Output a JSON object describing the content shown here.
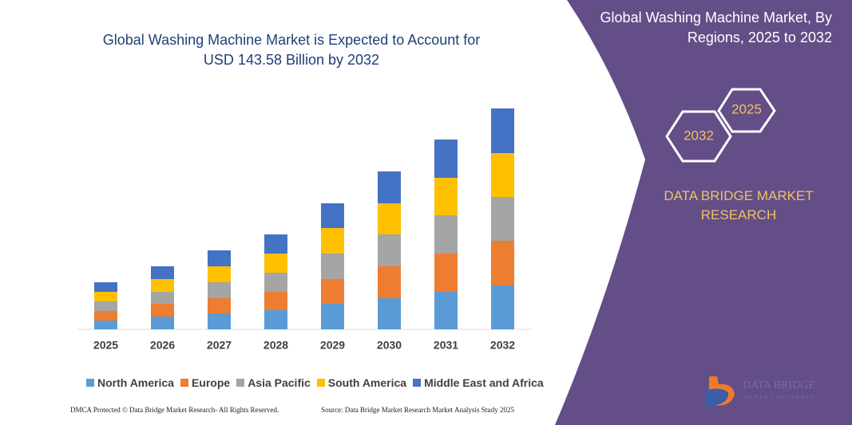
{
  "chart_data": {
    "type": "stacked_bar",
    "title": "Global Washing Machine Market is Expected to Account for USD 143.58 Billion by 2032",
    "categories": [
      "2025",
      "2026",
      "2027",
      "2028",
      "2029",
      "2030",
      "2031",
      "2032"
    ],
    "series": [
      {
        "name": "North America",
        "color": "#5b9bd5",
        "values": [
          11,
          16,
          20,
          24,
          32,
          39,
          47,
          55
        ]
      },
      {
        "name": "Europe",
        "color": "#ed7d31",
        "values": [
          12,
          16,
          19,
          23,
          31,
          40,
          48,
          56
        ]
      },
      {
        "name": "Asia Pacific",
        "color": "#a5a5a5",
        "values": [
          12,
          15,
          20,
          24,
          32,
          40,
          48,
          55
        ]
      },
      {
        "name": "South America",
        "color": "#ffc000",
        "values": [
          12,
          16,
          20,
          24,
          32,
          39,
          47,
          55
        ]
      },
      {
        "name": "Middle East and Africa",
        "color": "#4472c4",
        "values": [
          12,
          16,
          20,
          24,
          31,
          40,
          48,
          56
        ]
      }
    ]
  },
  "panel": {
    "title": "Global Washing Machine Market, By Regions, 2025 to 2032",
    "hex_left": "2032",
    "hex_right": "2025",
    "brand": "DATA BRIDGE MARKET RESEARCH",
    "logo_name": "DATA BRIDGE",
    "logo_sub": "MARKET RESEARCH"
  },
  "footer": {
    "left": "DMCA Protected © Data Bridge Market Research- All Rights Reserved.",
    "right": "Source: Data Bridge Market Research Market Analysis Study 2025"
  }
}
